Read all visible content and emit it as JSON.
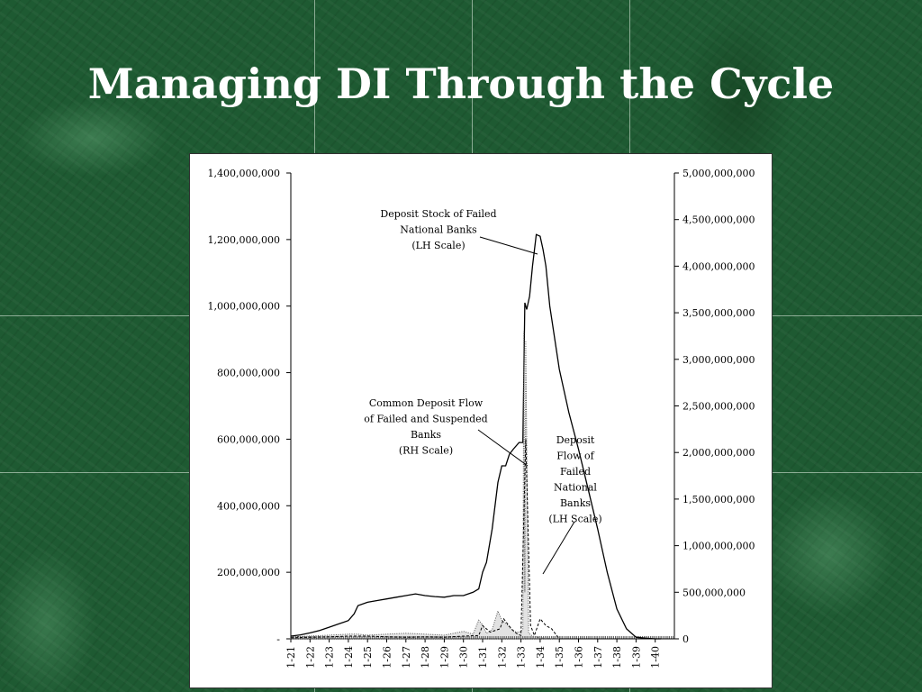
{
  "slide": {
    "title": "Managing DI Through the Cycle"
  },
  "chart_data": {
    "type": "line",
    "left_axis": {
      "ylim": [
        0,
        1400000000
      ],
      "ticks": [
        0,
        200000000,
        400000000,
        600000000,
        800000000,
        1000000000,
        1200000000,
        1400000000
      ],
      "tick_labels": [
        "-",
        "200,000,000",
        "400,000,000",
        "600,000,000",
        "800,000,000",
        "1,000,000,000",
        "1,200,000,000",
        "1,400,000,000"
      ]
    },
    "right_axis": {
      "ylim": [
        0,
        5000000000
      ],
      "ticks": [
        0,
        500000000,
        1000000000,
        1500000000,
        2000000000,
        2500000000,
        3000000000,
        3500000000,
        4000000000,
        4500000000,
        5000000000
      ],
      "tick_labels": [
        "0",
        "500,000,000",
        "1,000,000,000",
        "1,500,000,000",
        "2,000,000,000",
        "2,500,000,000",
        "3,000,000,000",
        "3,500,000,000",
        "4,000,000,000",
        "4,500,000,000",
        "5,000,000,000"
      ]
    },
    "x_axis": {
      "xlim": [
        1921,
        1941
      ],
      "ticks": [
        1921,
        1922,
        1923,
        1924,
        1925,
        1926,
        1927,
        1928,
        1929,
        1930,
        1931,
        1932,
        1933,
        1934,
        1935,
        1936,
        1937,
        1938,
        1939,
        1940
      ],
      "tick_labels": [
        "1-21",
        "1-22",
        "1-23",
        "1-24",
        "1-25",
        "1-26",
        "1-27",
        "1-28",
        "1-29",
        "1-30",
        "1-31",
        "1-32",
        "1-33",
        "1-34",
        "1-35",
        "1-36",
        "1-37",
        "1-38",
        "1-39",
        "1-40"
      ]
    },
    "series": [
      {
        "label_lines": [
          "Deposit Stock of Failed",
          "National Banks",
          "(LH Scale)"
        ],
        "axis": "left",
        "style": "solid",
        "x": [
          1921,
          1921.5,
          1922,
          1922.5,
          1923,
          1923.5,
          1924,
          1924.3,
          1924.5,
          1925,
          1925.5,
          1926,
          1926.5,
          1927,
          1927.5,
          1928,
          1928.5,
          1929,
          1929.5,
          1930,
          1930.5,
          1930.8,
          1931,
          1931.2,
          1931.5,
          1931.8,
          1932,
          1932.2,
          1932.4,
          1932.6,
          1932.9,
          1933.1,
          1933.2,
          1933.3,
          1933.45,
          1933.6,
          1933.8,
          1934,
          1934.15,
          1934.3,
          1934.5,
          1935,
          1935.5,
          1936,
          1936.5,
          1937,
          1937.5,
          1938,
          1938.5,
          1939,
          1939.5,
          1940,
          1940.3
        ],
        "y": [
          8000000,
          12000000,
          18000000,
          25000000,
          35000000,
          45000000,
          55000000,
          75000000,
          100000000,
          110000000,
          115000000,
          120000000,
          125000000,
          130000000,
          135000000,
          130000000,
          127000000,
          125000000,
          130000000,
          130000000,
          140000000,
          150000000,
          200000000,
          230000000,
          330000000,
          470000000,
          520000000,
          520000000,
          555000000,
          570000000,
          590000000,
          590000000,
          1010000000,
          990000000,
          1030000000,
          1120000000,
          1215000000,
          1210000000,
          1170000000,
          1120000000,
          1000000000,
          810000000,
          680000000,
          570000000,
          450000000,
          330000000,
          200000000,
          90000000,
          30000000,
          5000000,
          2000000,
          0,
          0
        ]
      },
      {
        "label_lines": [
          "Common Deposit Flow",
          "of Failed and Suspended",
          "Banks",
          "(RH Scale)"
        ],
        "axis": "right",
        "style": "dotted-fill",
        "x": [
          1921,
          1922,
          1923,
          1924,
          1924.5,
          1925,
          1926,
          1927,
          1928,
          1929,
          1930,
          1930.5,
          1930.8,
          1931,
          1931.2,
          1931.5,
          1931.8,
          1932,
          1932.3,
          1932.6,
          1932.9,
          1933.1,
          1933.15,
          1933.2,
          1933.25,
          1933.4,
          1933.6,
          1934,
          1935
        ],
        "y": [
          20000000,
          30000000,
          40000000,
          50000000,
          50000000,
          40000000,
          50000000,
          60000000,
          50000000,
          40000000,
          80000000,
          50000000,
          200000000,
          150000000,
          60000000,
          100000000,
          300000000,
          200000000,
          150000000,
          80000000,
          70000000,
          100000000,
          3300000000,
          500000000,
          3200000000,
          60000000,
          30000000,
          10000000,
          0
        ]
      },
      {
        "label_lines": [
          "Deposit",
          "Flow of",
          "Failed",
          "National",
          "Banks",
          "(LH Scale)"
        ],
        "axis": "left",
        "style": "dashed",
        "x": [
          1921,
          1922,
          1923,
          1924,
          1925,
          1926,
          1927,
          1928,
          1929,
          1930,
          1930.8,
          1931,
          1931.4,
          1931.9,
          1932.1,
          1932.5,
          1932.8,
          1933,
          1933.25,
          1933.5,
          1933.7,
          1934,
          1934.3,
          1934.6,
          1935
        ],
        "y": [
          3000000,
          5000000,
          6000000,
          8000000,
          8000000,
          6000000,
          5000000,
          6000000,
          5000000,
          8000000,
          10000000,
          40000000,
          20000000,
          30000000,
          60000000,
          30000000,
          15000000,
          10000000,
          600000000,
          40000000,
          10000000,
          60000000,
          40000000,
          30000000,
          0
        ]
      }
    ]
  }
}
